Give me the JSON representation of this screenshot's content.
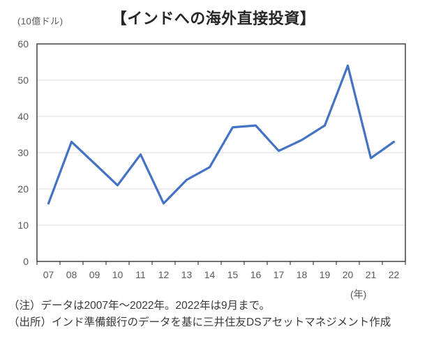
{
  "header": {
    "unit_label": "(10億ドル)",
    "title": "【インドへの海外直接投資】"
  },
  "chart_data": {
    "type": "line",
    "title": "【インドへの海外直接投資】",
    "ylabel": "(10億ドル)",
    "year_axis_label": "(年)",
    "categories": [
      "07",
      "08",
      "09",
      "10",
      "11",
      "12",
      "13",
      "14",
      "15",
      "16",
      "17",
      "18",
      "19",
      "20",
      "21",
      "22"
    ],
    "values": [
      16,
      33,
      27,
      21,
      29.5,
      16,
      22.5,
      26,
      37,
      37.5,
      30.5,
      33.5,
      37.5,
      54,
      28.5,
      33
    ],
    "ylim": [
      0,
      60
    ],
    "ytick_step": 10,
    "grid": true,
    "legend": "none",
    "line_color": "#4472C4",
    "axis_color": "#404040",
    "gridline_color": "#D9D9D9",
    "tick_label_color": "#595959"
  },
  "notes": {
    "note1": "（注）データは2007年～2022年。2022年は9月まで。",
    "note2": "（出所）インド準備銀行のデータを基に三井住友DSアセットマネジメント作成"
  }
}
